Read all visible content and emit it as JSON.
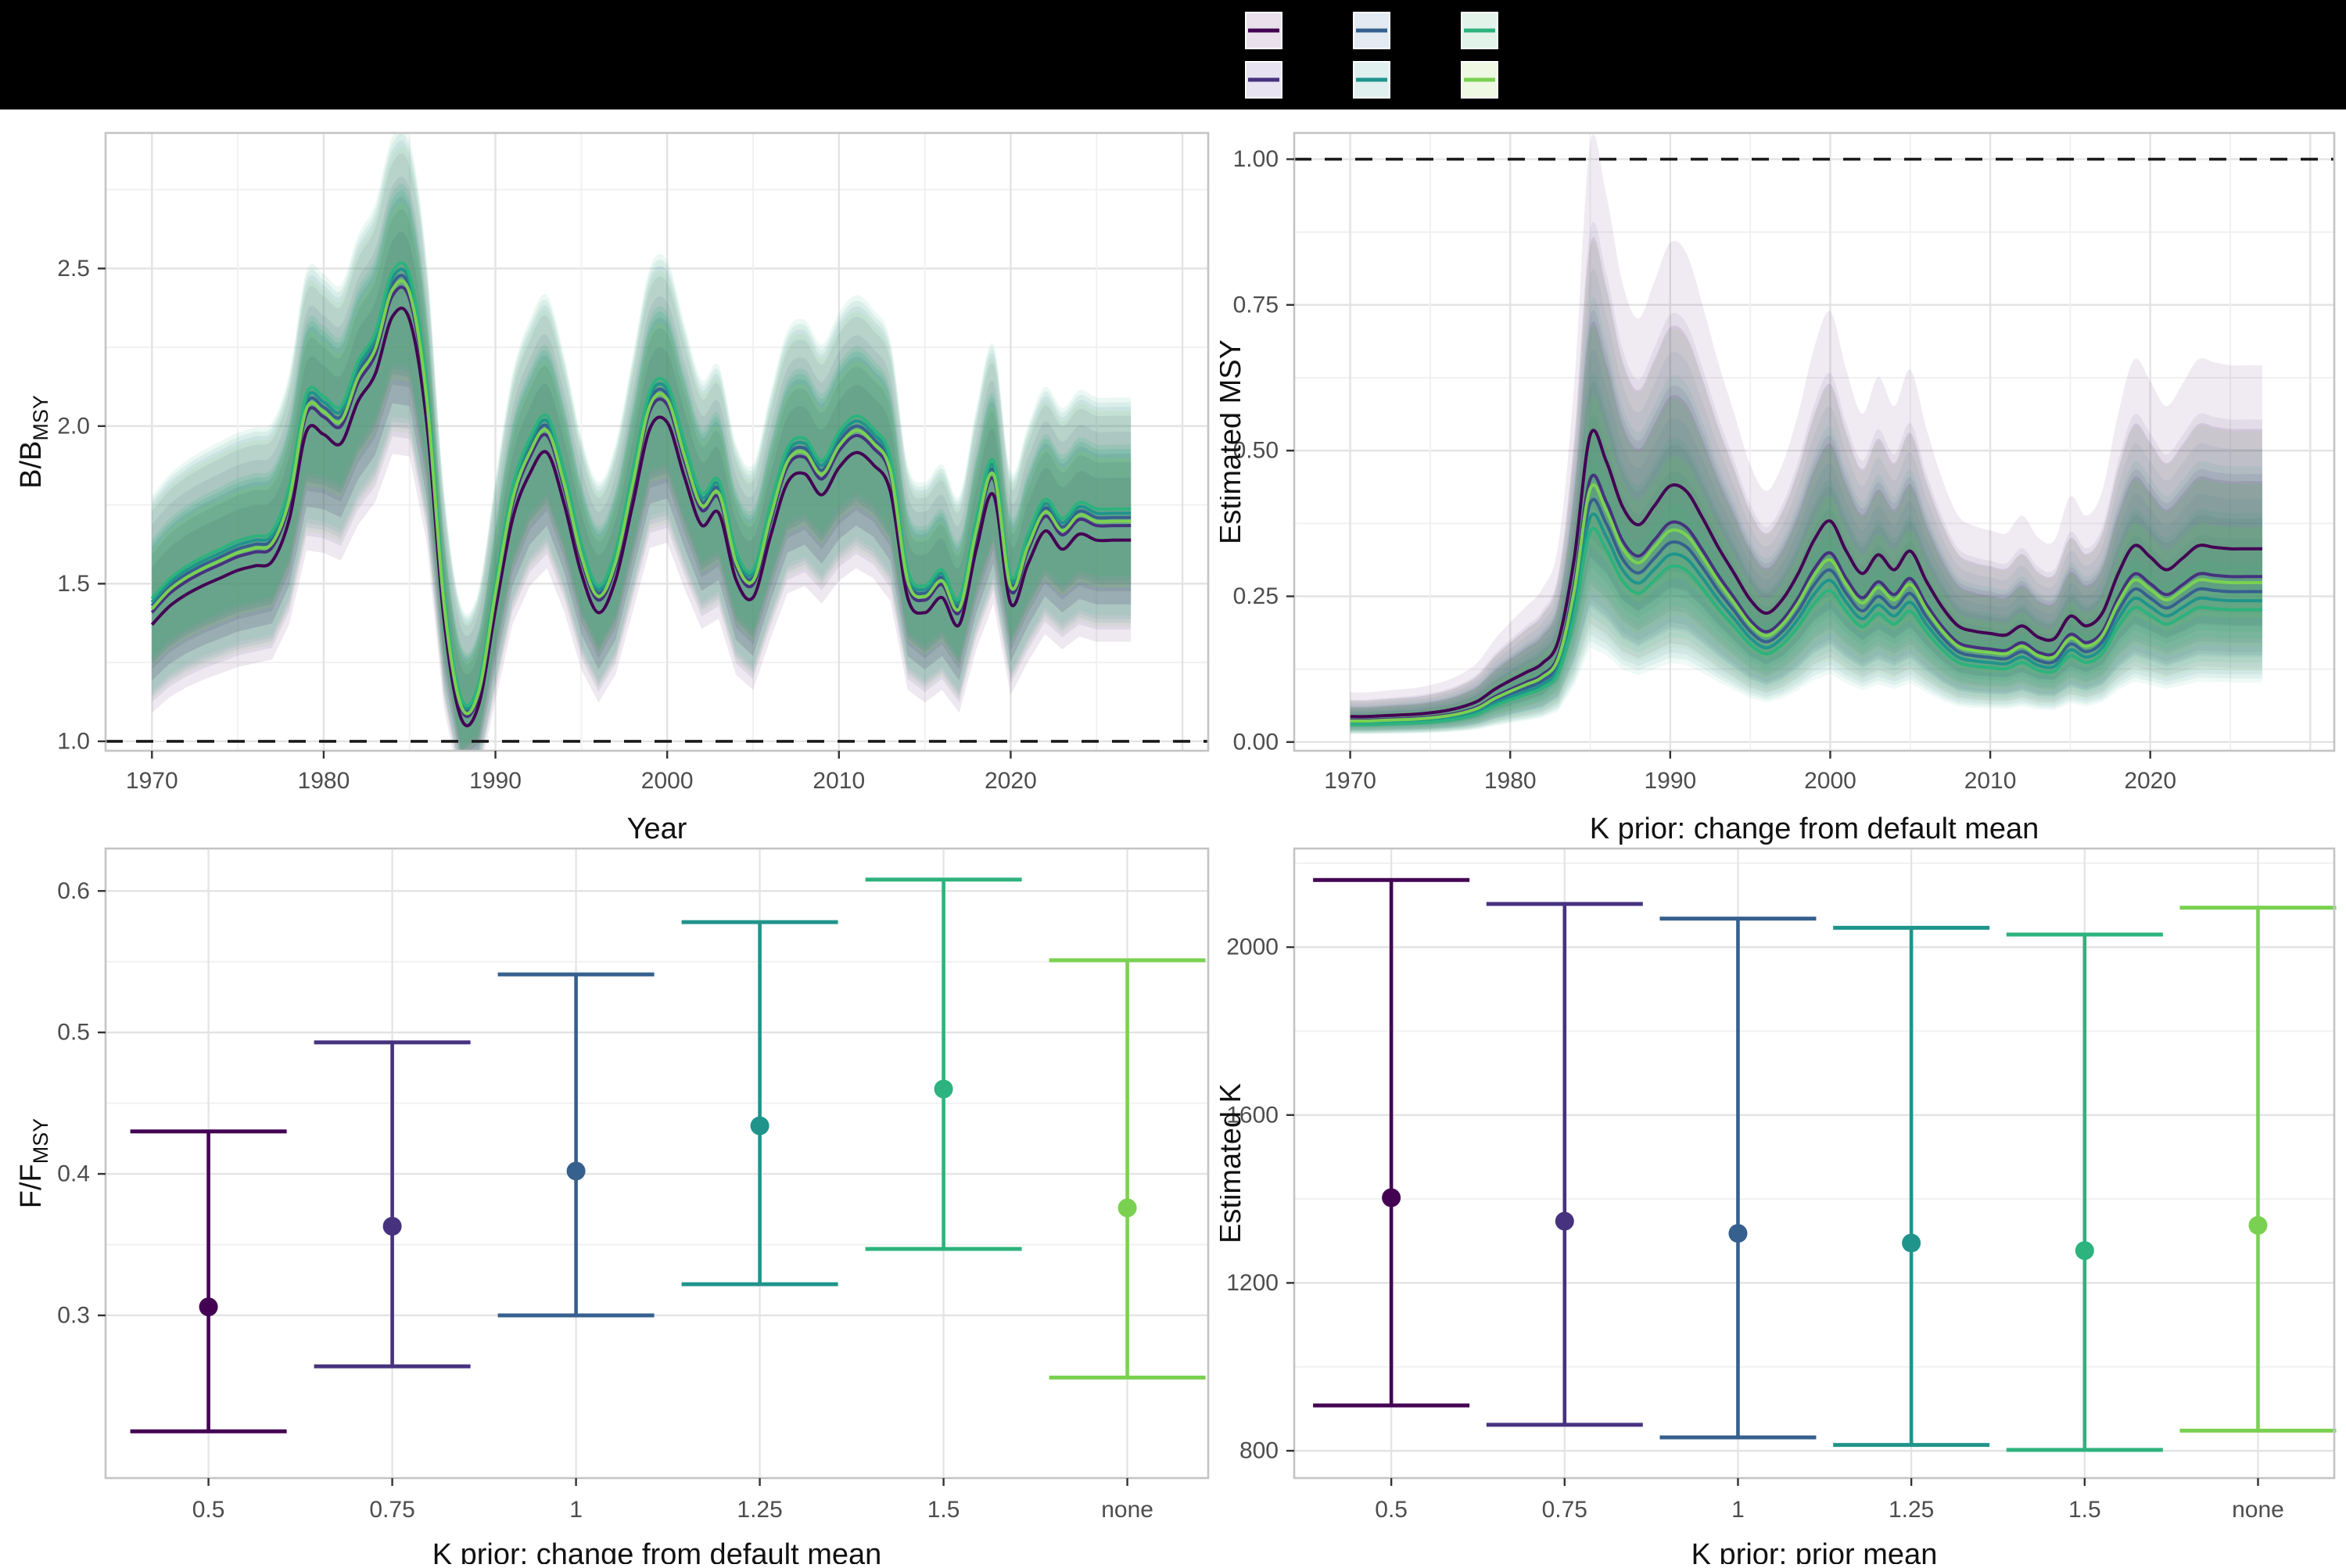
{
  "banner": {
    "background": "#000000"
  },
  "palette": {
    "grid_major": "#e3e3e3",
    "grid_minor": "#f1f1f1",
    "panel_border": "#c4c4c4",
    "panel_bg": "#ffffff",
    "tick_label": "#4d4d4d",
    "axis_title": "#111111",
    "ref_line": "#1a1a1a"
  },
  "series": [
    {
      "id": "0.5",
      "color": "#440154",
      "tint": "#e9e0ec",
      "b_factor": 0.958,
      "msy_factor": 1.285
    },
    {
      "id": "0.75",
      "color": "#46327e",
      "tint": "#e7e3f0",
      "b_factor": 0.985,
      "msy_factor": 1.1
    },
    {
      "id": "1",
      "color": "#36608e",
      "tint": "#e3eaf2",
      "b_factor": 1.0,
      "msy_factor": 1.0
    },
    {
      "id": "1.25",
      "color": "#1f948b",
      "tint": "#dff0ef",
      "b_factor": 1.008,
      "msy_factor": 0.94
    },
    {
      "id": "1.5",
      "color": "#2db37d",
      "tint": "#e2f3ea",
      "b_factor": 1.016,
      "msy_factor": 0.88
    },
    {
      "id": "none",
      "color": "#7ad151",
      "tint": "#eef8e2",
      "b_factor": 0.993,
      "msy_factor": 1.06
    }
  ],
  "chart_data": [
    {
      "id": "b_bmsy",
      "type": "line",
      "title": "",
      "xlabel": "Year",
      "ylabel_main": "B/B",
      "ylabel_sub": "MSY",
      "ylim": [
        0.97,
        2.93
      ],
      "xlim": [
        1967.3,
        2031.5
      ],
      "ytick_values": [
        1.0,
        1.5,
        2.0,
        2.5
      ],
      "ytick_labels": [
        "1.0",
        "1.5",
        "2.0",
        "2.5"
      ],
      "xtick_values": [
        1970,
        1980,
        1990,
        2000,
        2010,
        2020
      ],
      "xtick_labels": [
        "1970",
        "1980",
        "1990",
        "2000",
        "2010",
        "2020"
      ],
      "reference_line": 1.0,
      "legend_position": "top-hidden",
      "grid": true,
      "x": [
        1970,
        1971,
        1972,
        1973,
        1974,
        1975,
        1976,
        1977,
        1978,
        1979,
        1980,
        1981,
        1982,
        1983,
        1984,
        1985,
        1986,
        1987,
        1988,
        1989,
        1990,
        1991,
        1992,
        1993,
        1994,
        1995,
        1996,
        1997,
        1998,
        1999,
        2000,
        2001,
        2002,
        2003,
        2004,
        2005,
        2006,
        2007,
        2008,
        2009,
        2010,
        2011,
        2012,
        2013,
        2014,
        2015,
        2016,
        2017,
        2018,
        2019,
        2020,
        2021,
        2022,
        2023,
        2024,
        2025,
        2026,
        2027
      ],
      "base_values": [
        1.43,
        1.49,
        1.53,
        1.56,
        1.585,
        1.61,
        1.625,
        1.64,
        1.78,
        2.07,
        2.06,
        2.03,
        2.17,
        2.26,
        2.45,
        2.44,
        2.1,
        1.45,
        1.12,
        1.16,
        1.48,
        1.78,
        1.93,
        2.0,
        1.83,
        1.6,
        1.47,
        1.58,
        1.83,
        2.08,
        2.1,
        1.92,
        1.76,
        1.8,
        1.58,
        1.52,
        1.72,
        1.9,
        1.93,
        1.86,
        1.95,
        2.0,
        1.96,
        1.87,
        1.52,
        1.47,
        1.52,
        1.43,
        1.68,
        1.86,
        1.5,
        1.63,
        1.74,
        1.68,
        1.73,
        1.71,
        1.71,
        1.71
      ],
      "series_note": "six K-prior scenarios; per-series value = base_values * b_factor from series table; shaded ribbons are credible intervals around each line"
    },
    {
      "id": "estimated_msy",
      "type": "line",
      "title": "",
      "xlabel": "K prior: change from default mean",
      "ylabel": "Estimated MSY",
      "ylim": [
        -0.015,
        1.045
      ],
      "xlim": [
        1966.5,
        2031.5
      ],
      "ytick_values": [
        0.0,
        0.25,
        0.5,
        0.75,
        1.0
      ],
      "ytick_labels": [
        "0.00",
        "0.25",
        "0.50",
        "0.75",
        "1.00"
      ],
      "xtick_values": [
        1970,
        1980,
        1990,
        2000,
        2010,
        2020
      ],
      "xtick_labels": [
        "1970",
        "1980",
        "1990",
        "2000",
        "2010",
        "2020"
      ],
      "reference_line": 1.0,
      "grid": true,
      "x": [
        1970,
        1971,
        1972,
        1973,
        1974,
        1975,
        1976,
        1977,
        1978,
        1979,
        1980,
        1981,
        1982,
        1983,
        1984,
        1985,
        1986,
        1987,
        1988,
        1989,
        1990,
        1991,
        1992,
        1993,
        1994,
        1995,
        1996,
        1997,
        1998,
        1999,
        2000,
        2001,
        2002,
        2003,
        2004,
        2005,
        2006,
        2007,
        2008,
        2009,
        2010,
        2011,
        2012,
        2013,
        2014,
        2015,
        2016,
        2017,
        2018,
        2019,
        2020,
        2021,
        2022,
        2023,
        2024,
        2025,
        2026,
        2027
      ],
      "base_values": [
        0.034,
        0.034,
        0.035,
        0.036,
        0.037,
        0.039,
        0.042,
        0.047,
        0.055,
        0.07,
        0.082,
        0.093,
        0.105,
        0.135,
        0.245,
        0.41,
        0.375,
        0.315,
        0.29,
        0.315,
        0.342,
        0.335,
        0.3,
        0.26,
        0.225,
        0.19,
        0.172,
        0.19,
        0.225,
        0.27,
        0.295,
        0.255,
        0.225,
        0.25,
        0.23,
        0.255,
        0.215,
        0.18,
        0.155,
        0.148,
        0.145,
        0.143,
        0.155,
        0.14,
        0.138,
        0.168,
        0.155,
        0.172,
        0.225,
        0.262,
        0.247,
        0.23,
        0.245,
        0.262,
        0.26,
        0.258,
        0.258,
        0.258
      ],
      "series_note": "six K-prior scenarios; per-series value = base_values * msy_factor from series table; wide nested credible-interval ribbons"
    },
    {
      "id": "f_fmsy",
      "type": "pointrange",
      "title": "",
      "xlabel": "K prior: change from default mean",
      "ylabel_main": "F/F",
      "ylabel_sub": "MSY",
      "ylim": [
        0.185,
        0.63
      ],
      "ytick_values": [
        0.3,
        0.4,
        0.5,
        0.6
      ],
      "ytick_labels": [
        "0.3",
        "0.4",
        "0.5",
        "0.6"
      ],
      "categories": [
        "0.5",
        "0.75",
        "1",
        "1.25",
        "1.5",
        "none"
      ],
      "points": [
        {
          "category": "0.5",
          "mid": 0.306,
          "lo": 0.218,
          "hi": 0.43
        },
        {
          "category": "0.75",
          "mid": 0.363,
          "lo": 0.264,
          "hi": 0.493
        },
        {
          "category": "1",
          "mid": 0.402,
          "lo": 0.3,
          "hi": 0.541
        },
        {
          "category": "1.25",
          "mid": 0.434,
          "lo": 0.322,
          "hi": 0.578
        },
        {
          "category": "1.5",
          "mid": 0.46,
          "lo": 0.347,
          "hi": 0.608
        },
        {
          "category": "none",
          "mid": 0.376,
          "lo": 0.256,
          "hi": 0.551
        }
      ]
    },
    {
      "id": "estimated_k",
      "type": "pointrange",
      "title": "",
      "xlabel": "K prior: prior mean",
      "ylabel": "Estimated K",
      "ylim": [
        735,
        2235
      ],
      "ytick_values": [
        800,
        1200,
        1600,
        2000
      ],
      "ytick_labels": [
        "800",
        "1200",
        "1600",
        "2000"
      ],
      "categories": [
        "0.5",
        "0.75",
        "1",
        "1.25",
        "1.5",
        "none"
      ],
      "points": [
        {
          "category": "0.5",
          "mid": 1403,
          "lo": 908,
          "hi": 2160
        },
        {
          "category": "0.75",
          "mid": 1347,
          "lo": 862,
          "hi": 2103
        },
        {
          "category": "1",
          "mid": 1318,
          "lo": 832,
          "hi": 2068
        },
        {
          "category": "1.25",
          "mid": 1295,
          "lo": 814,
          "hi": 2046
        },
        {
          "category": "1.5",
          "mid": 1277,
          "lo": 802,
          "hi": 2030
        },
        {
          "category": "none",
          "mid": 1337,
          "lo": 848,
          "hi": 2094
        }
      ]
    }
  ]
}
